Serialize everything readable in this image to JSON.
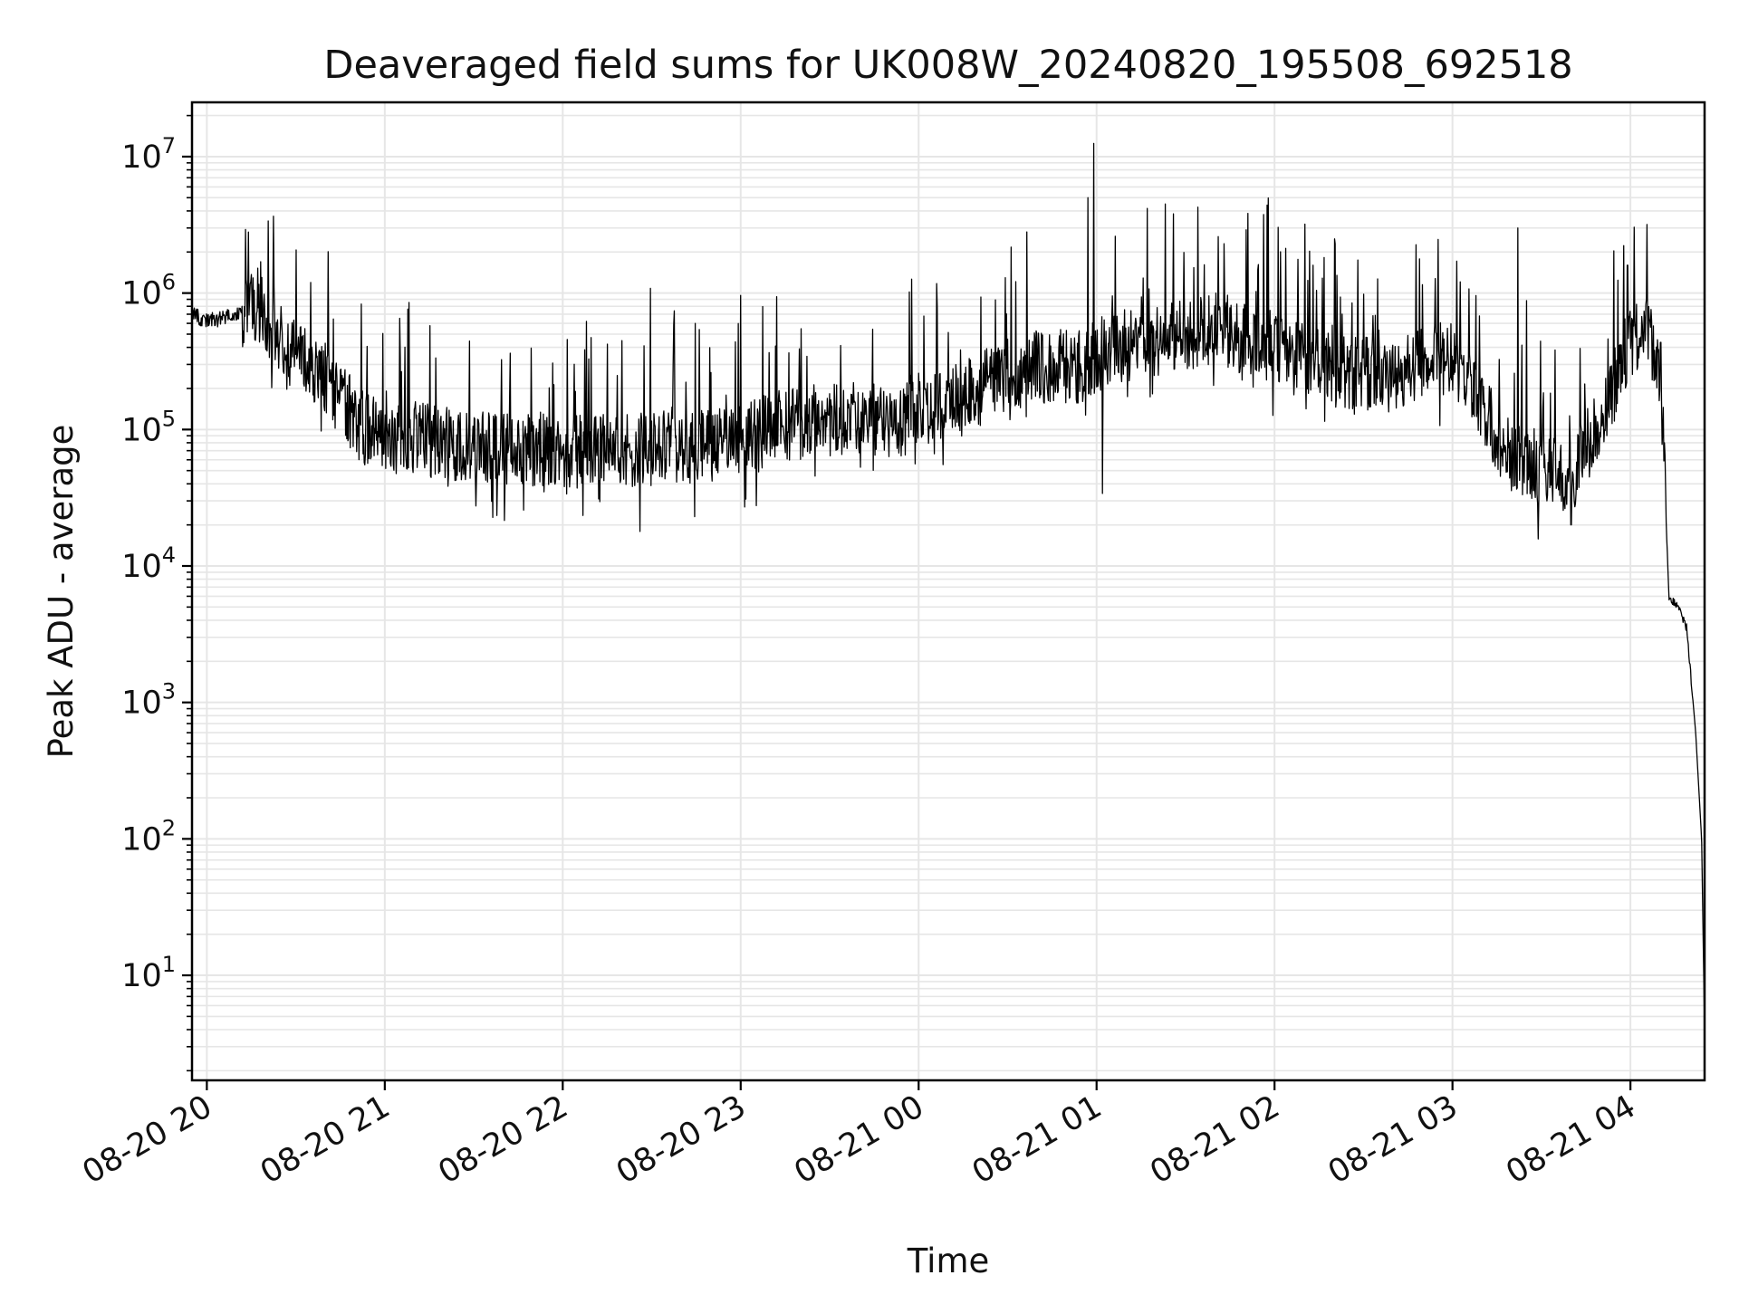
{
  "chart_data": {
    "type": "line",
    "title": "Deaveraged field sums for UK008W_20240820_195508_692518",
    "xlabel": "Time",
    "ylabel": "Peak ADU - average",
    "y_scale": "log",
    "ylim": [
      1.7,
      25000000
    ],
    "xlim": [
      "2024-08-20 19:55",
      "2024-08-21 04:25"
    ],
    "grid": true,
    "legend": "none",
    "colors": {
      "line": "#000000",
      "grid": "#e6e6e6",
      "axes": "#000000"
    },
    "x_ticks": [
      "08-20 20",
      "08-20 21",
      "08-20 22",
      "08-20 23",
      "08-21 00",
      "08-21 01",
      "08-21 02",
      "08-21 03",
      "08-21 04"
    ],
    "x_tick_values": [
      "2024-08-20 20:00",
      "2024-08-20 21:00",
      "2024-08-20 22:00",
      "2024-08-20 23:00",
      "2024-08-21 00:00",
      "2024-08-21 01:00",
      "2024-08-21 02:00",
      "2024-08-21 03:00",
      "2024-08-21 04:00"
    ],
    "y_ticks": [
      {
        "value": 10,
        "base": "10",
        "exp": "1"
      },
      {
        "value": 100,
        "base": "10",
        "exp": "2"
      },
      {
        "value": 1000,
        "base": "10",
        "exp": "3"
      },
      {
        "value": 10000,
        "base": "10",
        "exp": "4"
      },
      {
        "value": 100000,
        "base": "10",
        "exp": "5"
      },
      {
        "value": 1000000,
        "base": "10",
        "exp": "6"
      },
      {
        "value": 10000000,
        "base": "10",
        "exp": "7"
      }
    ],
    "series": [
      {
        "x": [
          "2024-08-20 19:55",
          "2024-08-20 20:00",
          "2024-08-20 20:05",
          "2024-08-20 20:10",
          "2024-08-20 20:15",
          "2024-08-20 20:20",
          "2024-08-20 20:25",
          "2024-08-20 20:30",
          "2024-08-20 20:35",
          "2024-08-20 20:40",
          "2024-08-20 20:45",
          "2024-08-20 20:50",
          "2024-08-20 20:55",
          "2024-08-20 21:00",
          "2024-08-20 21:10",
          "2024-08-20 21:20",
          "2024-08-20 21:30",
          "2024-08-20 21:40",
          "2024-08-20 21:50",
          "2024-08-20 22:00",
          "2024-08-20 22:15",
          "2024-08-20 22:30",
          "2024-08-20 22:45",
          "2024-08-20 23:00",
          "2024-08-20 23:15",
          "2024-08-20 23:30",
          "2024-08-20 23:45",
          "2024-08-21 00:00",
          "2024-08-21 00:15",
          "2024-08-21 00:30",
          "2024-08-21 00:45",
          "2024-08-21 00:55",
          "2024-08-21 01:00",
          "2024-08-21 01:05",
          "2024-08-21 01:20",
          "2024-08-21 01:40",
          "2024-08-21 02:00",
          "2024-08-21 02:20",
          "2024-08-21 02:40",
          "2024-08-21 03:00",
          "2024-08-21 03:10",
          "2024-08-21 03:20",
          "2024-08-21 03:30",
          "2024-08-21 03:40",
          "2024-08-21 03:50",
          "2024-08-21 04:00",
          "2024-08-21 04:05",
          "2024-08-21 04:10",
          "2024-08-21 04:13",
          "2024-08-21 04:16",
          "2024-08-21 04:19",
          "2024-08-21 04:22",
          "2024-08-21 04:24",
          "2024-08-21 04:25"
        ],
        "values": [
          700000,
          620000,
          650000,
          700000,
          850000,
          700000,
          450000,
          330000,
          280000,
          230000,
          170000,
          120000,
          95000,
          90000,
          85000,
          80000,
          75000,
          75000,
          72000,
          70000,
          70000,
          72000,
          75000,
          80000,
          110000,
          120000,
          115000,
          120000,
          170000,
          250000,
          300000,
          280000,
          350000,
          400000,
          450000,
          550000,
          400000,
          270000,
          250000,
          350000,
          150000,
          60000,
          50000,
          45000,
          120000,
          450000,
          500000,
          350000,
          6000,
          5000,
          3500,
          600,
          100,
          4
        ]
      }
    ]
  }
}
